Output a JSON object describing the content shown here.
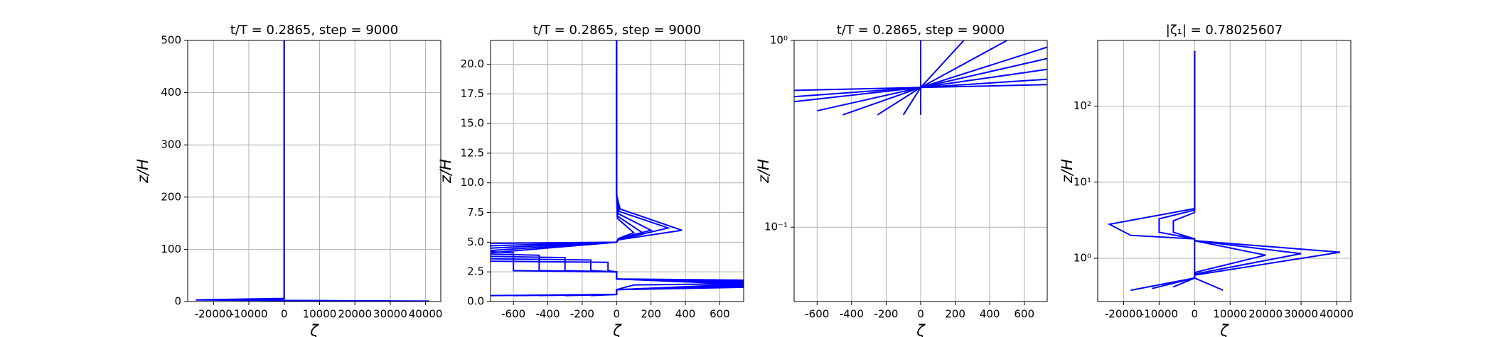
{
  "chart_data": [
    {
      "type": "line",
      "title": "t/T = 0.2865, step = 9000",
      "xlabel": "ζ",
      "ylabel": "z/H",
      "log_y": false,
      "grid": true,
      "xlim": [
        -27300,
        44300
      ],
      "ylim": [
        0,
        500
      ],
      "xticks": [
        -20000,
        -10000,
        0,
        10000,
        20000,
        30000,
        40000
      ],
      "yticks": [
        0,
        100,
        200,
        300,
        400,
        500
      ],
      "series": [
        {
          "color": "#0000ff",
          "x": [
            0,
            0,
            -25000,
            0,
            41000,
            0
          ],
          "y": [
            500,
            6,
            3,
            2,
            0.8,
            0.3
          ]
        },
        {
          "color": "#0000ff",
          "x": [
            0,
            0,
            -10000,
            0,
            30000,
            0
          ],
          "y": [
            500,
            5,
            3,
            2,
            1,
            0.3
          ]
        }
      ]
    },
    {
      "type": "line",
      "title": "t/T = 0.2865, step = 9000",
      "xlabel": "ζ",
      "ylabel": "z/H",
      "log_y": false,
      "grid": true,
      "xlim": [
        -733,
        739
      ],
      "ylim": [
        0,
        22
      ],
      "xticks": [
        -600,
        -400,
        -200,
        0,
        200,
        400,
        600
      ],
      "yticks": [
        {
          "value": 0,
          "label": "0.0"
        },
        {
          "value": 2.5,
          "label": "2.5"
        },
        {
          "value": 5,
          "label": "5.0"
        },
        {
          "value": 7.5,
          "label": "7.5"
        },
        {
          "value": 10,
          "label": "10.0"
        },
        {
          "value": 12.5,
          "label": "12.5"
        },
        {
          "value": 15,
          "label": "15.0"
        },
        {
          "value": 17.5,
          "label": "17.5"
        },
        {
          "value": 20,
          "label": "20.0"
        }
      ],
      "series": [
        {
          "color": "#0000ff",
          "x": [
            0,
            0,
            20,
            380,
            10,
            0,
            -733,
            -733,
            -600,
            -600,
            0,
            0,
            739,
            739,
            0,
            0,
            -733
          ],
          "y": [
            22,
            9,
            7.8,
            6,
            5.2,
            5,
            4.9,
            4.2,
            4.1,
            2.6,
            2.5,
            1.9,
            1.8,
            1.2,
            1.0,
            0.6,
            0.5
          ]
        },
        {
          "color": "#0000ff",
          "x": [
            0,
            0,
            15,
            300,
            10,
            0,
            -733,
            -733,
            -450,
            -450,
            0,
            0,
            739,
            739,
            0,
            0,
            -600
          ],
          "y": [
            22,
            9,
            7.6,
            6.2,
            5.2,
            5,
            4.7,
            4.0,
            3.9,
            2.6,
            2.5,
            1.9,
            1.7,
            1.3,
            1.0,
            0.6,
            0.5
          ]
        },
        {
          "color": "#0000ff",
          "x": [
            0,
            0,
            10,
            200,
            10,
            0,
            -733,
            -733,
            -300,
            -300,
            0,
            0,
            739,
            739,
            0,
            0,
            -450
          ],
          "y": [
            22,
            9,
            7.4,
            6,
            5.3,
            5,
            4.5,
            3.8,
            3.7,
            2.6,
            2.5,
            1.9,
            1.6,
            1.4,
            1.0,
            0.6,
            0.5
          ]
        },
        {
          "color": "#0000ff",
          "x": [
            0,
            0,
            5,
            150,
            10,
            0,
            -733,
            -733,
            -150,
            -150,
            0,
            0,
            739,
            100,
            0,
            0,
            -300
          ],
          "y": [
            22,
            9,
            7.2,
            5.8,
            5.3,
            5,
            4.3,
            3.6,
            3.5,
            2.6,
            2.5,
            1.9,
            1.5,
            1.4,
            1.0,
            0.6,
            0.5
          ]
        },
        {
          "color": "#0000ff",
          "x": [
            0,
            0,
            5,
            100,
            10,
            0,
            -733,
            -733,
            -50,
            -50,
            0,
            0,
            739,
            0,
            0,
            -150
          ],
          "y": [
            22,
            9,
            7,
            5.8,
            5.3,
            5,
            4.1,
            3.4,
            3.3,
            2.6,
            2.5,
            1.9,
            1.45,
            1.0,
            0.6,
            0.5
          ]
        }
      ]
    },
    {
      "type": "line",
      "title": "t/T = 0.2865, step = 9000",
      "xlabel": "ζ",
      "ylabel": "z/H",
      "log_y": true,
      "grid": true,
      "xlim": [
        -733,
        733
      ],
      "ylim": [
        0.04,
        1
      ],
      "xticks": [
        -600,
        -400,
        -200,
        0,
        200,
        400,
        600
      ],
      "yticks": [
        {
          "value": 0.1,
          "label": "10⁻¹"
        },
        {
          "value": 1,
          "label": "10⁰"
        }
      ],
      "series": [
        {
          "color": "#0000ff",
          "x": [
            -733,
            0,
            733
          ],
          "y": [
            0.54,
            0.56,
            0.58
          ]
        },
        {
          "color": "#0000ff",
          "x": [
            -733,
            0,
            733
          ],
          "y": [
            0.5,
            0.56,
            0.62
          ]
        },
        {
          "color": "#0000ff",
          "x": [
            -733,
            0,
            733
          ],
          "y": [
            0.47,
            0.56,
            0.7
          ]
        },
        {
          "color": "#0000ff",
          "x": [
            -600,
            0,
            733
          ],
          "y": [
            0.42,
            0.56,
            0.8
          ]
        },
        {
          "color": "#0000ff",
          "x": [
            -450,
            0,
            733
          ],
          "y": [
            0.4,
            0.56,
            0.92
          ]
        },
        {
          "color": "#0000ff",
          "x": [
            -250,
            0,
            500
          ],
          "y": [
            0.4,
            0.56,
            1
          ]
        },
        {
          "color": "#0000ff",
          "x": [
            -100,
            0,
            250
          ],
          "y": [
            0.4,
            0.56,
            1
          ]
        },
        {
          "color": "#0000ff",
          "x": [
            0,
            0,
            0
          ],
          "y": [
            0.4,
            0.56,
            1
          ]
        }
      ]
    },
    {
      "type": "line",
      "title": "|ζ₁| = 0.78025607",
      "xlabel": "ζ",
      "ylabel": "z/H",
      "log_y": true,
      "grid": true,
      "xlim": [
        -27300,
        44000
      ],
      "ylim": [
        0.27,
        730
      ],
      "xticks": [
        -20000,
        -10000,
        0,
        10000,
        20000,
        30000,
        40000
      ],
      "yticks": [
        {
          "value": 1,
          "label": "10⁰"
        },
        {
          "value": 10,
          "label": "10¹"
        },
        {
          "value": 100,
          "label": "10²"
        }
      ],
      "series": [
        {
          "color": "#0000ff",
          "x": [
            0,
            0,
            -24000,
            -18000,
            0,
            0,
            41000,
            0,
            0,
            -18000
          ],
          "y": [
            530,
            4.5,
            2.8,
            2.0,
            1.8,
            1.7,
            1.2,
            0.6,
            0.55,
            0.38
          ]
        },
        {
          "color": "#0000ff",
          "x": [
            0,
            0,
            -10000,
            -10000,
            0,
            0,
            30000,
            0,
            0,
            -12000
          ],
          "y": [
            530,
            4.3,
            3.3,
            2.2,
            1.8,
            1.7,
            1.15,
            0.62,
            0.55,
            0.4
          ]
        },
        {
          "color": "#0000ff",
          "x": [
            0,
            0,
            -6000,
            -6000,
            0,
            0,
            20000,
            0,
            0,
            -6000
          ],
          "y": [
            530,
            4.0,
            3.1,
            2.2,
            1.8,
            1.7,
            1.1,
            0.65,
            0.55,
            0.42
          ]
        },
        {
          "color": "#0000ff",
          "x": [
            0,
            0,
            0,
            8000
          ],
          "y": [
            1.8,
            0.6,
            0.55,
            0.38
          ]
        }
      ]
    }
  ]
}
